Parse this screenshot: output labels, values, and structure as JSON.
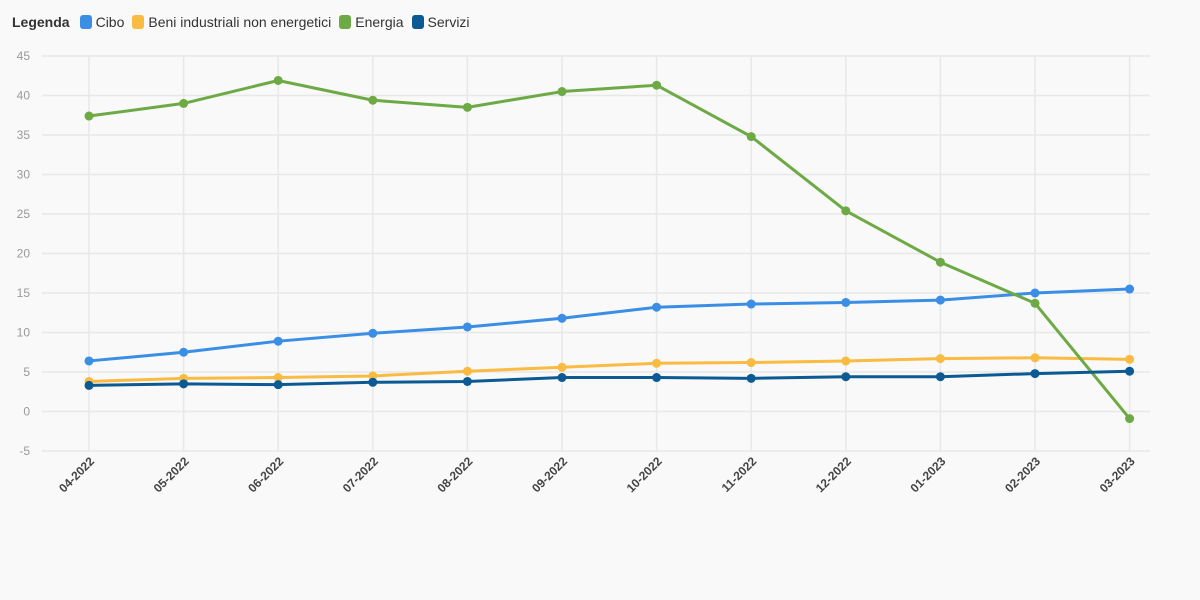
{
  "legend": {
    "title": "Legenda"
  },
  "chart_data": {
    "type": "line",
    "title": "",
    "xlabel": "",
    "ylabel": "",
    "categories": [
      "04-2022",
      "05-2022",
      "06-2022",
      "07-2022",
      "08-2022",
      "09-2022",
      "10-2022",
      "11-2022",
      "12-2022",
      "01-2023",
      "02-2023",
      "03-2023"
    ],
    "ylim": [
      -5,
      45
    ],
    "yticks": [
      -5,
      0,
      5,
      10,
      15,
      20,
      25,
      30,
      35,
      40,
      45
    ],
    "grid": true,
    "legend_position": "top-left",
    "series": [
      {
        "name": "Cibo",
        "color": "#3a8ee6",
        "values": [
          6.4,
          7.5,
          8.9,
          9.9,
          10.7,
          11.8,
          13.2,
          13.6,
          13.8,
          14.1,
          15.0,
          15.5
        ]
      },
      {
        "name": "Beni industriali non energetici",
        "color": "#f9bb42",
        "values": [
          3.8,
          4.2,
          4.3,
          4.5,
          5.1,
          5.6,
          6.1,
          6.2,
          6.4,
          6.7,
          6.8,
          6.6
        ]
      },
      {
        "name": "Energia",
        "color": "#6daa45",
        "values": [
          37.4,
          39.0,
          41.9,
          39.4,
          38.5,
          40.5,
          41.3,
          34.8,
          25.4,
          18.9,
          13.7,
          -0.9
        ]
      },
      {
        "name": "Servizi",
        "color": "#0b5a93",
        "values": [
          3.3,
          3.5,
          3.4,
          3.7,
          3.8,
          4.3,
          4.3,
          4.2,
          4.4,
          4.4,
          4.8,
          5.1
        ]
      }
    ]
  }
}
